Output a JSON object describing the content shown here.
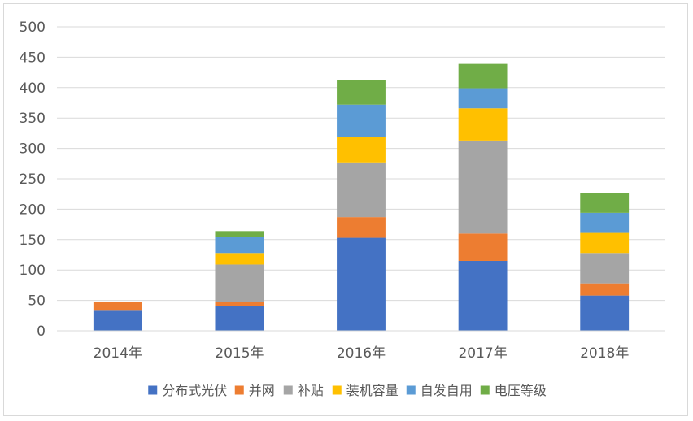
{
  "chart_data": {
    "type": "bar",
    "stacked": true,
    "categories": [
      "2014年",
      "2015年",
      "2016年",
      "2017年",
      "2018年"
    ],
    "series": [
      {
        "name": "分布式光伏",
        "color": "#4472C4",
        "values": [
          33,
          41,
          153,
          115,
          58
        ]
      },
      {
        "name": "并网",
        "color": "#ED7D31",
        "values": [
          15,
          7,
          34,
          45,
          20
        ]
      },
      {
        "name": "补贴",
        "color": "#A5A5A5",
        "values": [
          0,
          61,
          90,
          153,
          50
        ]
      },
      {
        "name": "装机容量",
        "color": "#FFC000",
        "values": [
          0,
          19,
          42,
          53,
          33
        ]
      },
      {
        "name": "自发自用",
        "color": "#5B9BD5",
        "values": [
          0,
          26,
          53,
          33,
          33
        ]
      },
      {
        "name": "电压等级",
        "color": "#70AD47",
        "values": [
          0,
          10,
          40,
          40,
          32
        ]
      }
    ],
    "ylim": [
      0,
      500
    ],
    "yticks": [
      "0",
      "50",
      "100",
      "150",
      "200",
      "250",
      "300",
      "350",
      "400",
      "450",
      "500"
    ],
    "grid": true,
    "legend_position": "bottom"
  }
}
